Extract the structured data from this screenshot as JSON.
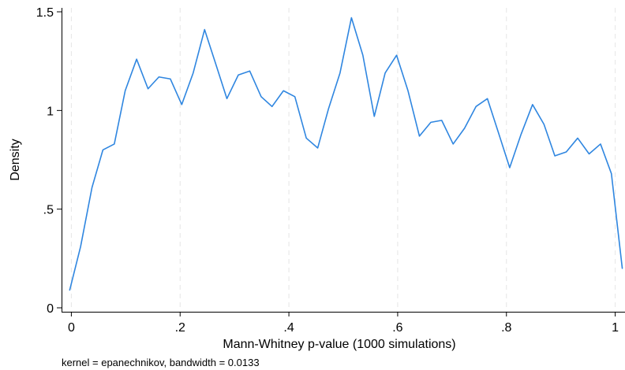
{
  "chart_data": {
    "type": "line",
    "title": "",
    "xlabel": "Mann-Whitney p-value (1000 simulations)",
    "ylabel": "Density",
    "note": "kernel = epanechnikov, bandwidth = 0.0133",
    "xlim": [
      -0.018,
      1.018
    ],
    "ylim": [
      -0.02,
      1.52
    ],
    "x_ticks": [
      {
        "value": 0,
        "label": "0"
      },
      {
        "value": 0.2,
        "label": ".2"
      },
      {
        "value": 0.4,
        "label": ".4"
      },
      {
        "value": 0.6,
        "label": ".6"
      },
      {
        "value": 0.8,
        "label": ".8"
      },
      {
        "value": 1,
        "label": "1"
      }
    ],
    "y_ticks": [
      {
        "value": 0,
        "label": "0"
      },
      {
        "value": 0.5,
        "label": ".5"
      },
      {
        "value": 1,
        "label": "1"
      },
      {
        "value": 1.5,
        "label": "1.5"
      }
    ],
    "grid": "vertical dashed at x ticks",
    "legend": "none",
    "line_color": "#2f86e0",
    "series": [
      {
        "x": [
          -0.003,
          0.017,
          0.038,
          0.058,
          0.079,
          0.099,
          0.12,
          0.141,
          0.161,
          0.182,
          0.203,
          0.224,
          0.245,
          0.265,
          0.286,
          0.307,
          0.328,
          0.349,
          0.369,
          0.39,
          0.411,
          0.432,
          0.453,
          0.473,
          0.494,
          0.515,
          0.536,
          0.557,
          0.577,
          0.598,
          0.619,
          0.64,
          0.661,
          0.681,
          0.702,
          0.723,
          0.744,
          0.765,
          0.785,
          0.806,
          0.827,
          0.848,
          0.869,
          0.889,
          0.91,
          0.931,
          0.952,
          0.973,
          0.993,
          1.013
        ],
        "y": [
          0.09,
          0.31,
          0.61,
          0.8,
          0.83,
          1.1,
          1.26,
          1.11,
          1.17,
          1.16,
          1.03,
          1.19,
          1.41,
          1.24,
          1.06,
          1.18,
          1.2,
          1.07,
          1.02,
          1.1,
          1.07,
          0.86,
          0.81,
          1.01,
          1.19,
          1.47,
          1.28,
          0.97,
          1.19,
          1.28,
          1.1,
          0.87,
          0.94,
          0.95,
          0.83,
          0.91,
          1.02,
          1.06,
          0.89,
          0.71,
          0.88,
          1.03,
          0.93,
          0.77,
          0.79,
          0.86,
          0.78,
          0.83,
          0.68,
          0.2
        ]
      }
    ]
  }
}
